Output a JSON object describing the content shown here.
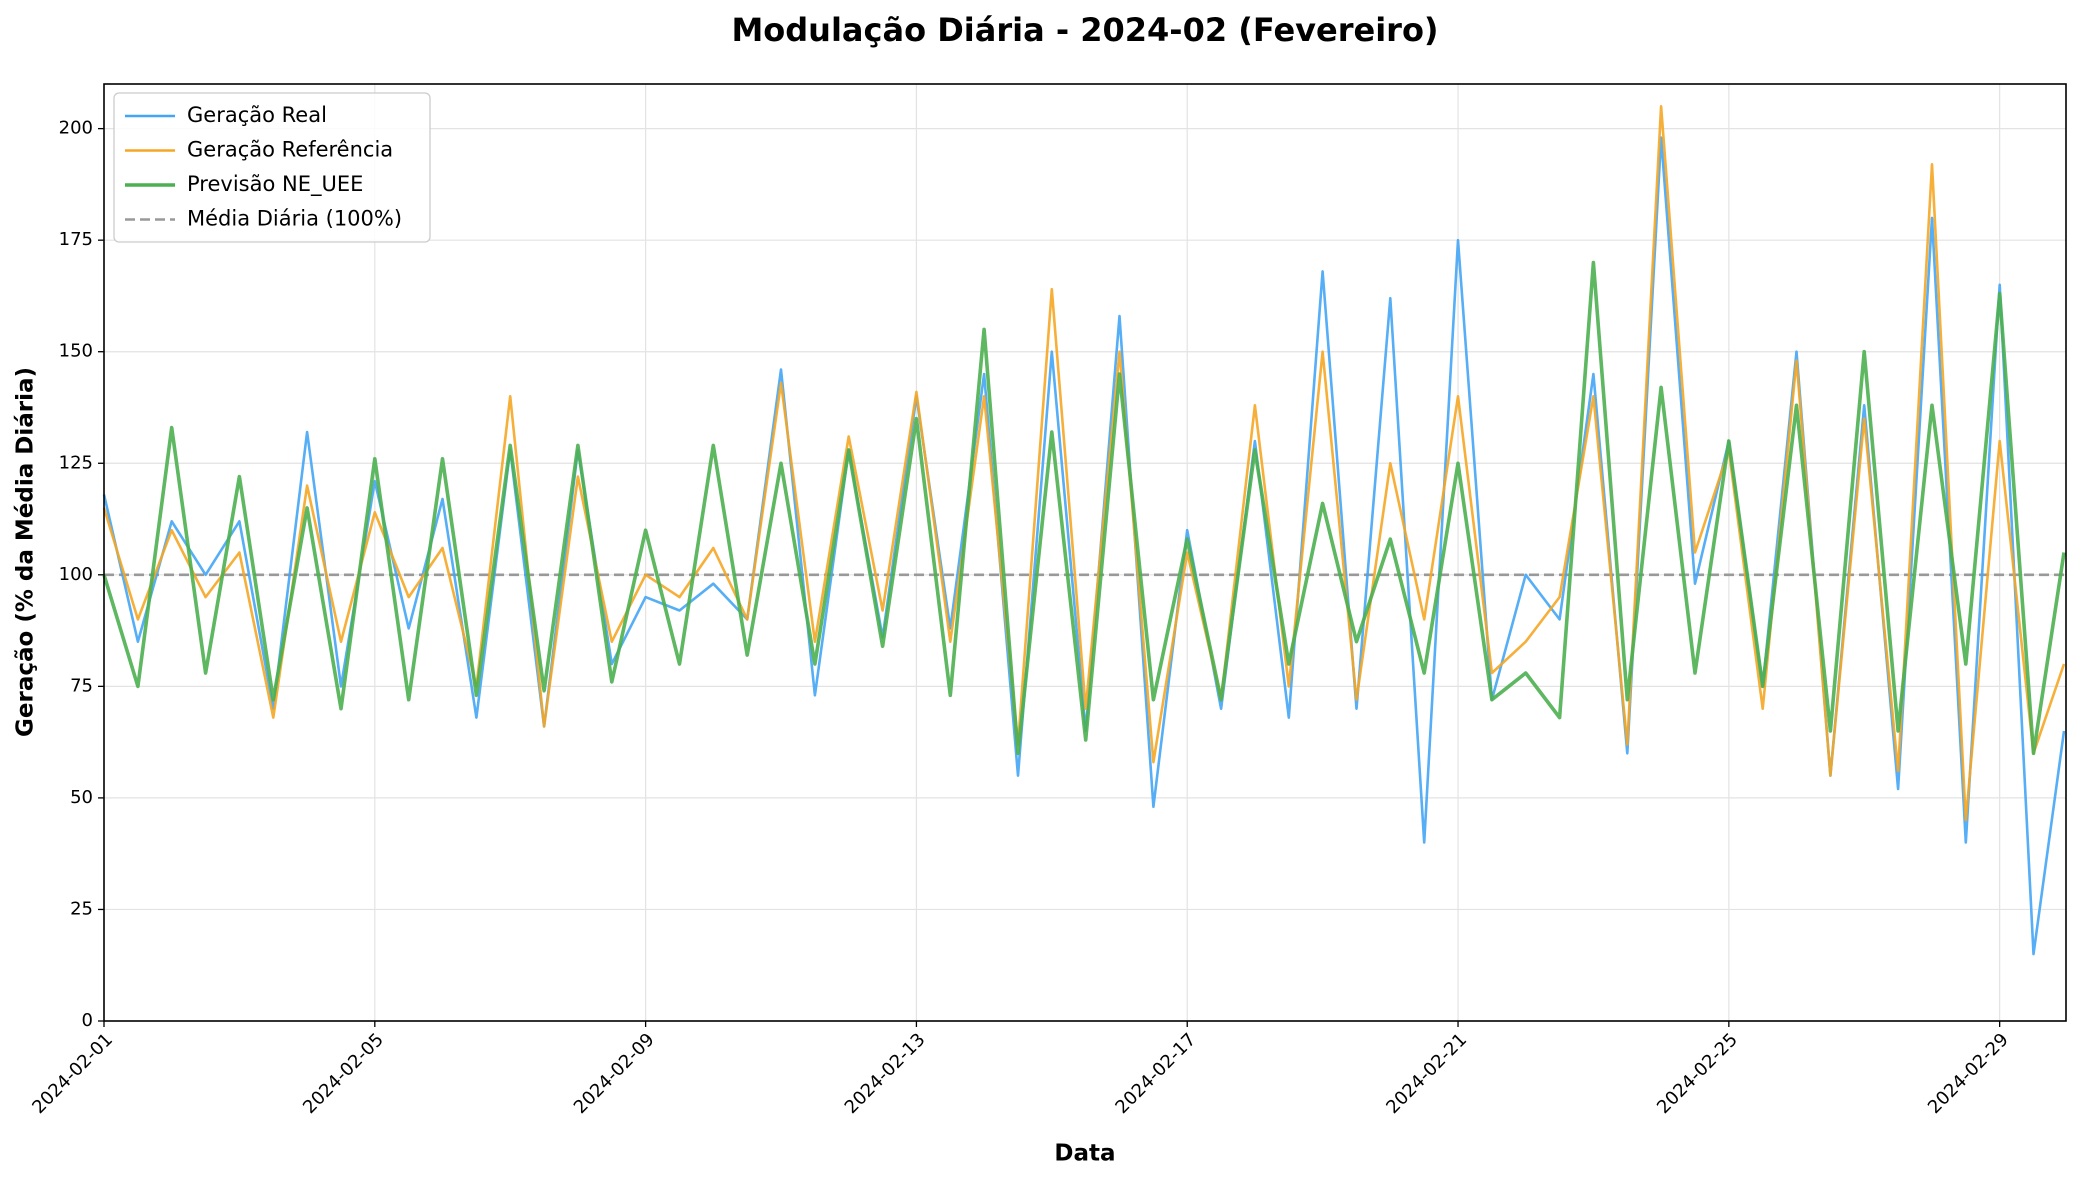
{
  "chart_data": {
    "type": "line",
    "title": "Modulação Diária - 2024-02 (Fevereiro)",
    "xlabel": "Data",
    "ylabel": "Geração (% da Média Diária)",
    "x": [
      0,
      0.5,
      1,
      1.5,
      2,
      2.5,
      3,
      3.5,
      4,
      4.5,
      5,
      5.5,
      6,
      6.5,
      7,
      7.5,
      8,
      8.5,
      9,
      9.5,
      10,
      10.5,
      11,
      11.5,
      12,
      12.5,
      13,
      13.5,
      14,
      14.5,
      15,
      15.5,
      16,
      16.5,
      17,
      17.5,
      18,
      18.5,
      19,
      19.5,
      20,
      20.5,
      21,
      21.5,
      22,
      22.5,
      23,
      23.5,
      24,
      24.5,
      25,
      25.5,
      26,
      26.5,
      27,
      27.5,
      28,
      28.5,
      28.95
    ],
    "series": [
      {
        "name": "Geração Real",
        "color": "#42a5f5",
        "width": 2.6,
        "values": [
          118,
          85,
          112,
          100,
          112,
          70,
          132,
          75,
          121,
          88,
          117,
          68,
          128,
          66,
          128,
          80,
          95,
          92,
          98,
          90,
          146,
          73,
          128,
          86,
          140,
          88,
          145,
          55,
          150,
          65,
          158,
          48,
          110,
          70,
          130,
          68,
          168,
          70,
          162,
          40,
          175,
          72,
          100,
          90,
          145,
          60,
          198,
          98,
          130,
          75,
          150,
          55,
          138,
          52,
          180,
          40,
          165,
          15,
          65
        ]
      },
      {
        "name": "Geração Referência",
        "color": "#f5a623",
        "width": 2.6,
        "values": [
          115,
          90,
          110,
          95,
          105,
          68,
          120,
          85,
          114,
          95,
          106,
          75,
          140,
          66,
          122,
          85,
          100,
          95,
          106,
          90,
          143,
          85,
          131,
          92,
          141,
          85,
          140,
          62,
          164,
          70,
          150,
          58,
          105,
          72,
          138,
          75,
          150,
          72,
          125,
          90,
          140,
          78,
          85,
          95,
          140,
          62,
          205,
          105,
          128,
          70,
          148,
          55,
          135,
          56,
          192,
          45,
          130,
          60,
          80
        ]
      },
      {
        "name": "Previsão NE_UEE",
        "color": "#4caf50",
        "width": 3.6,
        "values": [
          100,
          75,
          133,
          78,
          122,
          72,
          115,
          70,
          126,
          72,
          126,
          73,
          129,
          74,
          129,
          76,
          110,
          80,
          129,
          82,
          125,
          80,
          128,
          84,
          135,
          73,
          155,
          60,
          132,
          63,
          145,
          72,
          108,
          72,
          128,
          80,
          116,
          85,
          108,
          78,
          125,
          72,
          78,
          68,
          170,
          72,
          142,
          78,
          130,
          75,
          138,
          65,
          150,
          65,
          138,
          80,
          163,
          60,
          105
        ]
      }
    ],
    "hline": {
      "name": "Média Diária (100%)",
      "value": 100,
      "color": "#999999"
    },
    "xlim": [
      0,
      28.98
    ],
    "xticks": [
      {
        "value": 0,
        "label": "2024-02-01"
      },
      {
        "value": 4,
        "label": "2024-02-05"
      },
      {
        "value": 8,
        "label": "2024-02-09"
      },
      {
        "value": 12,
        "label": "2024-02-13"
      },
      {
        "value": 16,
        "label": "2024-02-17"
      },
      {
        "value": 20,
        "label": "2024-02-21"
      },
      {
        "value": 24,
        "label": "2024-02-25"
      },
      {
        "value": 28,
        "label": "2024-02-29"
      }
    ],
    "ylim": [
      0,
      210
    ],
    "yticks": [
      0,
      25,
      50,
      75,
      100,
      125,
      150,
      175,
      200
    ],
    "grid": true,
    "legend": "upper-left"
  }
}
